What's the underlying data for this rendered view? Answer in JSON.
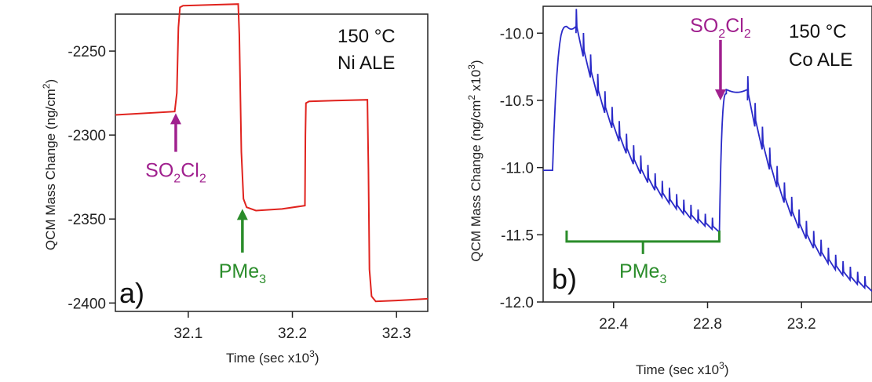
{
  "chart_data": [
    {
      "type": "line",
      "panel_label": "a)",
      "conditions": [
        "150 °C",
        "Ni ALE"
      ],
      "xlabel": "Time (sec x10",
      "xlabel_exp": "3",
      "xlabel_close": ")",
      "ylabel": "QCM Mass Change (ng/cm",
      "ylabel_exp": "2",
      "ylabel_close": ")",
      "xlim": [
        32.03,
        32.33
      ],
      "ylim": [
        -2405,
        -2228
      ],
      "x_ticks": [
        "32.1",
        "32.2",
        "32.3"
      ],
      "x_tick_values": [
        32.1,
        32.2,
        32.3
      ],
      "y_ticks": [
        "-2250",
        "-2300",
        "-2350",
        "-2400"
      ],
      "y_tick_values": [
        -2250,
        -2300,
        -2350,
        -2400
      ],
      "series": [
        {
          "color": "#e0231e",
          "points": [
            [
              32.03,
              -2288
            ],
            [
              32.087,
              -2286
            ],
            [
              32.089,
              -2275
            ],
            [
              32.0905,
              -2236
            ],
            [
              32.092,
              -2224
            ],
            [
              32.095,
              -2223
            ],
            [
              32.12,
              -2222.5
            ],
            [
              32.148,
              -2222
            ],
            [
              32.149,
              -2240
            ],
            [
              32.151,
              -2310
            ],
            [
              32.153,
              -2338
            ],
            [
              32.156,
              -2343
            ],
            [
              32.165,
              -2345
            ],
            [
              32.19,
              -2344
            ],
            [
              32.212,
              -2342
            ],
            [
              32.2125,
              -2300
            ],
            [
              32.213,
              -2281
            ],
            [
              32.216,
              -2280
            ],
            [
              32.24,
              -2279.5
            ],
            [
              32.272,
              -2279
            ],
            [
              32.273,
              -2320
            ],
            [
              32.274,
              -2380
            ],
            [
              32.276,
              -2396
            ],
            [
              32.28,
              -2399
            ],
            [
              32.3,
              -2398.5
            ],
            [
              32.33,
              -2397.5
            ]
          ]
        }
      ],
      "annotations": [
        {
          "text": "SO",
          "sub1": "2",
          "mid": "Cl",
          "sub2": "2",
          "color": "#a0208e",
          "x": 32.088,
          "y_head": -2287,
          "y_tail": -2310
        },
        {
          "text": "PMe",
          "sub1": "3",
          "color": "#2a8c2a",
          "x": 32.152,
          "y_head": -2344,
          "y_tail": -2370
        }
      ]
    },
    {
      "type": "line",
      "panel_label": "b)",
      "conditions": [
        "150 °C",
        "Co ALE"
      ],
      "xlabel": "Time (sec x10",
      "xlabel_exp": "3",
      "xlabel_close": ")",
      "ylabel": "QCM Mass Change (ng/cm",
      "ylabel_exp": "2",
      "ylabel_mid": " x10",
      "ylabel_exp2": "3",
      "ylabel_close": ")",
      "xlim": [
        22.1,
        23.5
      ],
      "ylim": [
        -12.0,
        -9.8
      ],
      "x_ticks": [
        "22.4",
        "22.8",
        "23.2"
      ],
      "x_tick_values": [
        22.4,
        22.8,
        23.2
      ],
      "y_ticks": [
        "-10.0",
        "-10.5",
        "-11.0",
        "-11.5",
        "-12.0"
      ],
      "y_tick_values": [
        -10.0,
        -10.5,
        -11.0,
        -11.5,
        -12.0
      ],
      "series": [
        {
          "color": "#2a2ac8",
          "segments": [
            {
              "type": "flat",
              "x0": 22.1,
              "x1": 22.14,
              "y": -11.02
            },
            {
              "type": "rise",
              "x0": 22.14,
              "x1": 22.2,
              "y0": -11.02,
              "y1": -9.95
            },
            {
              "type": "plateau",
              "x0": 22.2,
              "x1": 22.24,
              "y": -9.95
            },
            {
              "type": "decay",
              "x0": 22.24,
              "x1": 22.85,
              "y0": -10.0,
              "y1": -11.48,
              "pulses": 20
            },
            {
              "type": "rise",
              "x0": 22.85,
              "x1": 22.88,
              "y0": -11.5,
              "y1": -10.45
            },
            {
              "type": "plateau",
              "x0": 22.88,
              "x1": 22.97,
              "y": -10.42
            },
            {
              "type": "decay",
              "x0": 22.97,
              "x1": 23.5,
              "y0": -10.5,
              "y1": -11.92,
              "pulses": 17
            }
          ]
        }
      ],
      "annotations": [
        {
          "text": "SO",
          "sub1": "2",
          "mid": "Cl",
          "sub2": "2",
          "color": "#a0208e",
          "x": 22.855,
          "y_head": -10.5,
          "y_tail": -10.05
        },
        {
          "text": "PMe",
          "sub1": "3",
          "color": "#2a8c2a",
          "bracket_x0": 22.2,
          "bracket_x1": 22.85,
          "bracket_y": -11.55
        }
      ]
    }
  ]
}
